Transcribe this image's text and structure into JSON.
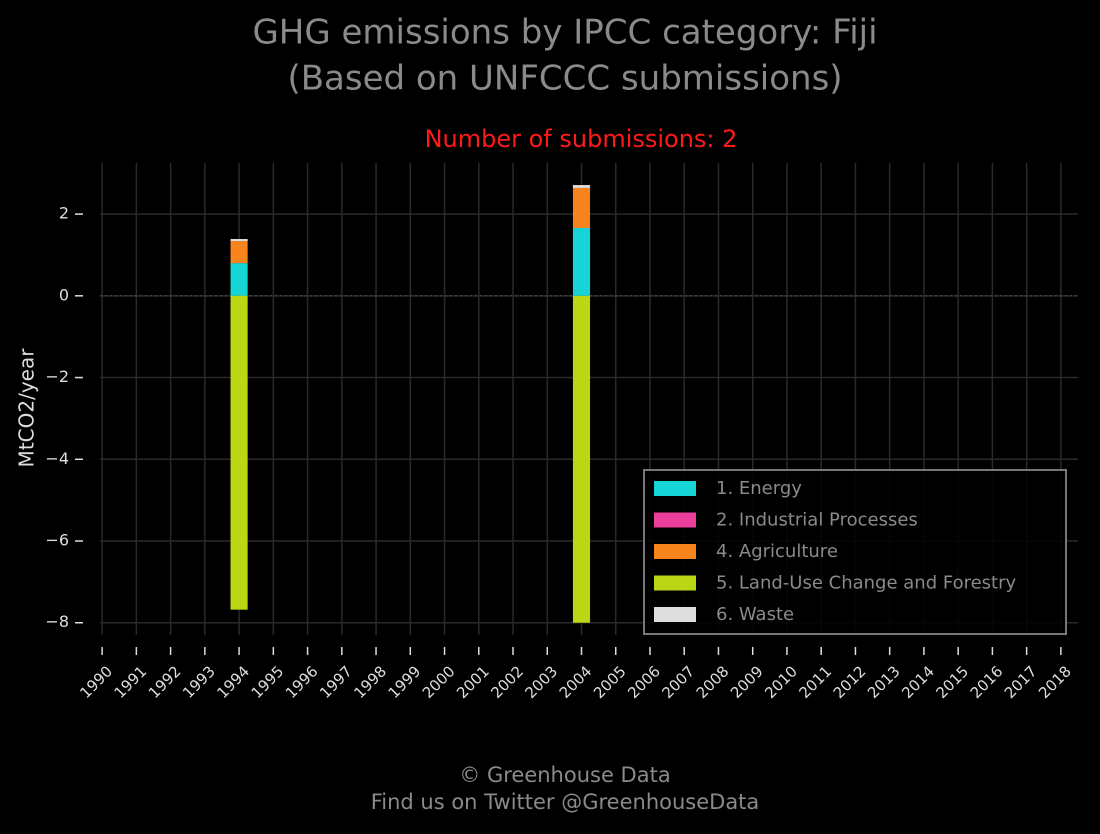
{
  "chart_data": {
    "type": "stacked-bar",
    "title": [
      "GHG emissions by IPCC category: Fiji",
      "(Based on UNFCCC submissions)"
    ],
    "subtitle": "Number of submissions: 2",
    "y_label": "MtCO2/year",
    "categories": [
      "1990",
      "1991",
      "1992",
      "1993",
      "1994",
      "1995",
      "1996",
      "1997",
      "1998",
      "1999",
      "2000",
      "2001",
      "2002",
      "2003",
      "2004",
      "2005",
      "2006",
      "2007",
      "2008",
      "2009",
      "2010",
      "2011",
      "2012",
      "2013",
      "2014",
      "2015",
      "2016",
      "2017",
      "2018"
    ],
    "series": [
      {
        "name": "1. Energy",
        "color": "#17d4d6",
        "values": [
          null,
          null,
          null,
          null,
          0.8,
          null,
          null,
          null,
          null,
          null,
          null,
          null,
          null,
          null,
          1.66,
          null,
          null,
          null,
          null,
          null,
          null,
          null,
          null,
          null,
          null,
          null,
          null,
          null,
          null
        ]
      },
      {
        "name": "2. Industrial Processes",
        "color": "#ea3e9c",
        "values": [
          null,
          null,
          null,
          null,
          0,
          null,
          null,
          null,
          null,
          null,
          null,
          null,
          null,
          null,
          0,
          null,
          null,
          null,
          null,
          null,
          null,
          null,
          null,
          null,
          null,
          null,
          null,
          null,
          null
        ]
      },
      {
        "name": "4. Agriculture",
        "color": "#f7841d",
        "values": [
          null,
          null,
          null,
          null,
          0.54,
          null,
          null,
          null,
          null,
          null,
          null,
          null,
          null,
          null,
          0.98,
          null,
          null,
          null,
          null,
          null,
          null,
          null,
          null,
          null,
          null,
          null,
          null,
          null,
          null
        ]
      },
      {
        "name": "5. Land-Use Change and Forestry",
        "color": "#bad615",
        "values": [
          null,
          null,
          null,
          null,
          -7.68,
          null,
          null,
          null,
          null,
          null,
          null,
          null,
          null,
          null,
          -8.0,
          null,
          null,
          null,
          null,
          null,
          null,
          null,
          null,
          null,
          null,
          null,
          null,
          null,
          null
        ]
      },
      {
        "name": "6. Waste",
        "color": "#dedede",
        "values": [
          null,
          null,
          null,
          null,
          0.05,
          null,
          null,
          null,
          null,
          null,
          null,
          null,
          null,
          null,
          0.07,
          null,
          null,
          null,
          null,
          null,
          null,
          null,
          null,
          null,
          null,
          null,
          null,
          null,
          null
        ]
      }
    ],
    "ylim": [
      -8.3,
      3.25
    ],
    "yticks": [
      {
        "value": -8,
        "label": "−8"
      },
      {
        "value": -6,
        "label": "−6"
      },
      {
        "value": -4,
        "label": "−4"
      },
      {
        "value": -2,
        "label": "−2"
      },
      0,
      2
    ],
    "grid": true,
    "legend": "lower right",
    "footer": [
      "© Greenhouse Data",
      "Find us on Twitter @GreenhouseData"
    ]
  }
}
